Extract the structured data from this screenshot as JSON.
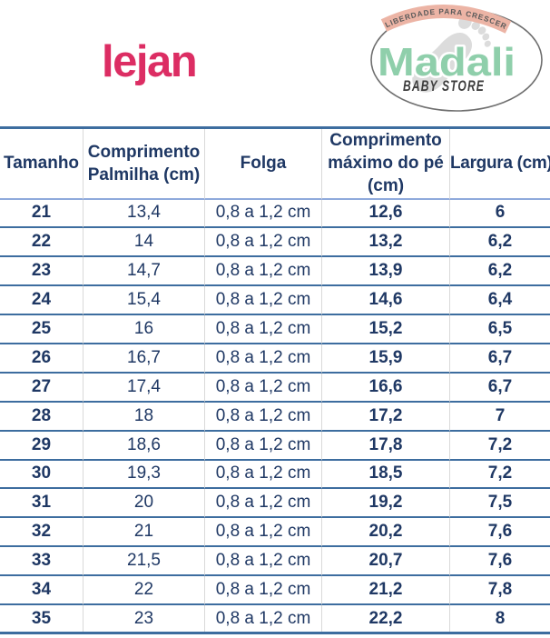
{
  "colors": {
    "ink": "#1F3864",
    "line_strong": "#3D6D9F",
    "line_header": "#8FAADC",
    "line_light": "#D9D9D9",
    "lejan_pink": "#DC2D63",
    "madali_green": "#8FCFAB",
    "ribbon_fill": "#ECB4A5",
    "ribbon_text": "#5A5A5A",
    "baby_store_ink": "#3D3D3D",
    "ellipse_stroke": "#6F6F6F",
    "footprint_gray": "#DCDCDC",
    "background": "#FFFFFF"
  },
  "header": {
    "lejan": {
      "wordmark": "lejan"
    },
    "madali": {
      "tagline": "LIBERDADE PARA CRESCER",
      "name": "Madali",
      "subtitle": "BABY STORE"
    }
  },
  "table": {
    "columns": [
      {
        "key": "tamanho",
        "label": "Tamanho",
        "bold": true
      },
      {
        "key": "palmilha",
        "label": "Comprimento Palmilha (cm)",
        "bold": false
      },
      {
        "key": "folga",
        "label": "Folga",
        "bold": false
      },
      {
        "key": "pe",
        "label": "Comprimento máximo do pé (cm)",
        "bold": true
      },
      {
        "key": "largura",
        "label": "Largura (cm)",
        "bold": true
      }
    ],
    "rows": [
      [
        "21",
        "13,4",
        "0,8 a 1,2 cm",
        "12,6",
        "6"
      ],
      [
        "22",
        "14",
        "0,8 a 1,2 cm",
        "13,2",
        "6,2"
      ],
      [
        "23",
        "14,7",
        "0,8 a 1,2 cm",
        "13,9",
        "6,2"
      ],
      [
        "24",
        "15,4",
        "0,8 a 1,2 cm",
        "14,6",
        "6,4"
      ],
      [
        "25",
        "16",
        "0,8 a 1,2 cm",
        "15,2",
        "6,5"
      ],
      [
        "26",
        "16,7",
        "0,8 a 1,2 cm",
        "15,9",
        "6,7"
      ],
      [
        "27",
        "17,4",
        "0,8 a 1,2 cm",
        "16,6",
        "6,7"
      ],
      [
        "28",
        "18",
        "0,8 a 1,2 cm",
        "17,2",
        "7"
      ],
      [
        "29",
        "18,6",
        "0,8 a 1,2 cm",
        "17,8",
        "7,2"
      ],
      [
        "30",
        "19,3",
        "0,8 a 1,2 cm",
        "18,5",
        "7,2"
      ],
      [
        "31",
        "20",
        "0,8 a 1,2 cm",
        "19,2",
        "7,5"
      ],
      [
        "32",
        "21",
        "0,8 a 1,2 cm",
        "20,2",
        "7,6"
      ],
      [
        "33",
        "21,5",
        "0,8 a 1,2 cm",
        "20,7",
        "7,6"
      ],
      [
        "34",
        "22",
        "0,8 a 1,2 cm",
        "21,2",
        "7,8"
      ],
      [
        "35",
        "23",
        "0,8 a 1,2 cm",
        "22,2",
        "8"
      ]
    ]
  }
}
